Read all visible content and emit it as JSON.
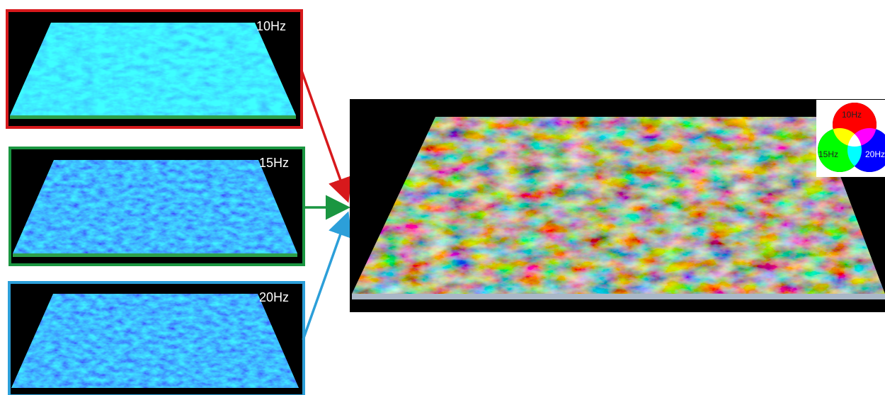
{
  "panels": [
    {
      "label": "10Hz"
    },
    {
      "label": "15Hz"
    },
    {
      "label": "20Hz"
    }
  ],
  "legend": {
    "labels": [
      "10Hz",
      "15Hz",
      "20Hz"
    ]
  }
}
